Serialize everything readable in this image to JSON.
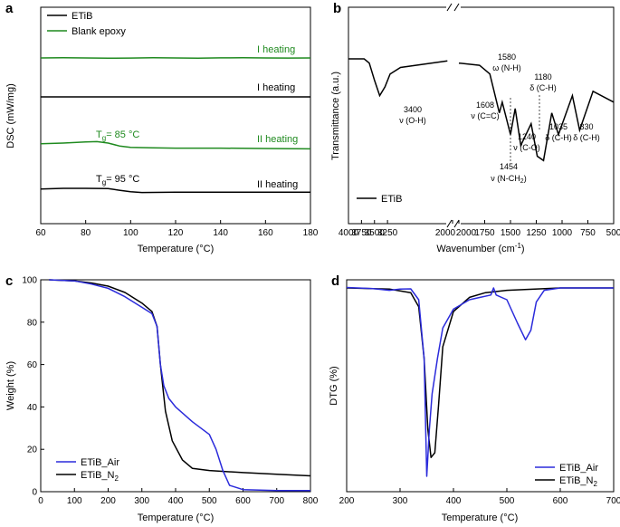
{
  "colors": {
    "etib": "#000000",
    "blank": "#1f8a1f",
    "air": "#2b2bdb",
    "n2": "#000000",
    "tg_green": "#1f8a1f"
  },
  "chart_data": [
    {
      "panel": "a",
      "type": "line",
      "xlabel": "Temperature (°C)",
      "ylabel": "DSC (mW/mg)",
      "xlim": [
        60,
        180
      ],
      "xticks": [
        "60",
        "80",
        "100",
        "120",
        "140",
        "160",
        "180"
      ],
      "legend": [
        {
          "name": "ETiB",
          "color": "#000000"
        },
        {
          "name": "Blank epoxy",
          "color": "#1f8a1f"
        }
      ],
      "labels": {
        "h1a": "I heating",
        "h1b": "I heating",
        "h2a": "II heating",
        "h2b": "II heating",
        "tg1": "T",
        "tg1_sub": "g",
        "tg1_val": "= 85 °C",
        "tg2": "T",
        "tg2_sub": "g",
        "tg2_val": "= 95 °C"
      },
      "series": [
        {
          "name": "Blank epoxy I heating",
          "x": [
            60,
            70,
            80,
            90,
            100,
            110,
            120,
            130,
            140,
            150,
            160,
            170,
            180
          ],
          "y": [
            0,
            0.1,
            0.0,
            -0.15,
            -0.05,
            0.1,
            0.0,
            -0.1,
            0.05,
            0.1,
            0.0,
            -0.05,
            0.0
          ]
        },
        {
          "name": "ETiB I heating",
          "x": [
            60,
            80,
            100,
            120,
            140,
            160,
            180
          ],
          "y": [
            0,
            0,
            0,
            0,
            0,
            0,
            0
          ]
        },
        {
          "name": "Blank epoxy II heating",
          "x": [
            60,
            70,
            80,
            85,
            90,
            95,
            100,
            110,
            120,
            140,
            160,
            180
          ],
          "y": [
            0.9,
            1.0,
            1.15,
            1.2,
            1.0,
            0.6,
            0.4,
            0.35,
            0.3,
            0.3,
            0.25,
            0.2
          ]
        },
        {
          "name": "ETiB II heating",
          "x": [
            60,
            70,
            80,
            90,
            95,
            100,
            105,
            120,
            140,
            160,
            180
          ],
          "y": [
            0.9,
            1.0,
            1.0,
            0.95,
            0.7,
            0.45,
            0.35,
            0.38,
            0.38,
            0.38,
            0.38
          ]
        }
      ]
    },
    {
      "panel": "b",
      "type": "line",
      "xlabel": "Wavenumber (cm",
      "xlabel_sup": "-1",
      "xlabel_end": ")",
      "ylabel": "Transmittance (a.u.)",
      "xticks": [
        "4000",
        "3750",
        "3500",
        "3250",
        "2000",
        "2000",
        "1750",
        "1500",
        "1250",
        "1000",
        "750",
        "500"
      ],
      "legend": [
        {
          "name": "ETiB",
          "color": "#000000"
        }
      ],
      "annotations": [
        {
          "l1": "3400",
          "l2": "ν (O-H)"
        },
        {
          "l1": "1580",
          "l2": "ω (N-H)"
        },
        {
          "l1": "1608",
          "l2": "ν (C=C)"
        },
        {
          "l1": "1180",
          "l2": "δ (C-H)"
        },
        {
          "l1": "1240",
          "l2": "ν (C-O)"
        },
        {
          "l1": "1035",
          "l2": "δ (C-H)"
        },
        {
          "l1": "830",
          "l2": "δ (C-H)"
        },
        {
          "l1": "1454",
          "l2": "ν (N-CH",
          "l2sub": "2",
          "l2end": ")"
        }
      ],
      "series": [
        {
          "name": "ETiB",
          "x": [
            4000,
            3700,
            3600,
            3500,
            3400,
            3300,
            3200,
            3000,
            2100,
            2000,
            1800,
            1700,
            1608,
            1580,
            1500,
            1454,
            1400,
            1300,
            1240,
            1180,
            1100,
            1035,
            900,
            830,
            700,
            500
          ],
          "y": [
            95,
            95,
            93,
            85,
            78,
            82,
            88,
            91,
            94,
            93,
            92,
            88,
            70,
            75,
            60,
            72,
            55,
            65,
            50,
            48,
            70,
            60,
            78,
            62,
            80,
            75
          ]
        }
      ]
    },
    {
      "panel": "c",
      "type": "line",
      "xlabel": "Temperature (°C)",
      "ylabel": "Weight (%)",
      "xlim": [
        0,
        800
      ],
      "ylim": [
        0,
        100
      ],
      "xticks": [
        "0",
        "100",
        "200",
        "300",
        "400",
        "500",
        "600",
        "700",
        "800"
      ],
      "yticks": [
        "0",
        "20",
        "40",
        "60",
        "80",
        "100"
      ],
      "legend": [
        {
          "name": "ETiB_Air",
          "color": "#2b2bdb"
        },
        {
          "name": "ETiB_N",
          "sub": "2",
          "color": "#000000"
        }
      ],
      "series": [
        {
          "name": "ETiB_Air",
          "x": [
            25,
            100,
            150,
            200,
            250,
            300,
            330,
            345,
            355,
            365,
            380,
            400,
            450,
            500,
            520,
            540,
            560,
            600,
            700,
            800
          ],
          "y": [
            100,
            99.5,
            98,
            96,
            92,
            87,
            84,
            78,
            60,
            50,
            44,
            40,
            33,
            27,
            20,
            10,
            3,
            1,
            0.5,
            0.5
          ]
        },
        {
          "name": "ETiB_N2",
          "x": [
            25,
            100,
            150,
            200,
            250,
            300,
            330,
            345,
            355,
            370,
            390,
            420,
            450,
            500,
            600,
            700,
            800
          ],
          "y": [
            100,
            99.5,
            98.5,
            97,
            94,
            89,
            85,
            78,
            60,
            38,
            24,
            15,
            11,
            10,
            9,
            8.2,
            7.5
          ]
        }
      ]
    },
    {
      "panel": "d",
      "type": "line",
      "xlabel": "Temperature (°C)",
      "ylabel": "DTG (%)",
      "xlim": [
        200,
        700
      ],
      "xticks": [
        "200",
        "300",
        "400",
        "500",
        "600",
        "700"
      ],
      "legend": [
        {
          "name": "ETiB_Air",
          "color": "#2b2bdb"
        },
        {
          "name": "ETiB_N",
          "sub": "2",
          "color": "#000000"
        }
      ],
      "series": [
        {
          "name": "ETiB_Air",
          "x": [
            200,
            250,
            280,
            300,
            320,
            335,
            345,
            350,
            355,
            360,
            370,
            380,
            400,
            430,
            450,
            470,
            475,
            480,
            500,
            520,
            535,
            545,
            555,
            570,
            600,
            700
          ],
          "y": [
            0.2,
            -0.3,
            -1,
            -0.5,
            -0.4,
            -5,
            -30,
            -80,
            -60,
            -45,
            -30,
            -17,
            -9,
            -5,
            -4,
            -3,
            0,
            -3,
            -5,
            -15,
            -22,
            -18,
            -6,
            -1,
            0,
            0
          ]
        },
        {
          "name": "ETiB_N2",
          "x": [
            200,
            280,
            320,
            335,
            345,
            352,
            358,
            365,
            372,
            380,
            400,
            430,
            460,
            500,
            600,
            700
          ],
          "y": [
            0,
            -0.5,
            -2,
            -8,
            -30,
            -60,
            -72,
            -70,
            -50,
            -25,
            -10,
            -4,
            -2,
            -1,
            0,
            0
          ]
        }
      ]
    }
  ]
}
